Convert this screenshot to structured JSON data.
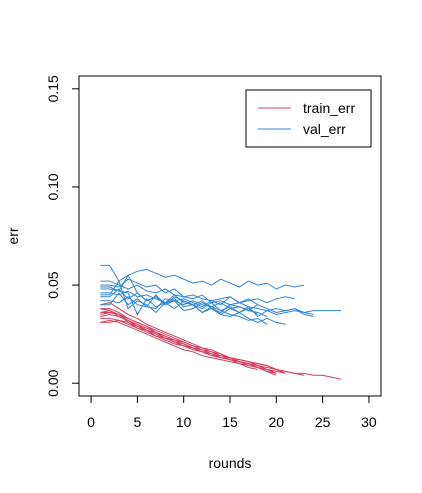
{
  "chart_data": {
    "type": "line",
    "title": "",
    "xlabel": "rounds",
    "ylabel": "err",
    "xlim": [
      0,
      30
    ],
    "ylim": [
      0,
      0.15
    ],
    "x_ticks": [
      0,
      5,
      10,
      15,
      20,
      25,
      30
    ],
    "y_ticks": [
      0.0,
      0.05,
      0.1,
      0.15
    ],
    "x_tick_labels": [
      "0",
      "5",
      "10",
      "15",
      "20",
      "25",
      "30"
    ],
    "y_tick_labels": [
      "0.00",
      "0.05",
      "0.10",
      "0.15"
    ],
    "grid": false,
    "legend_position": "top-right",
    "legend": [
      {
        "label": "train_err",
        "color": "#d4405e"
      },
      {
        "label": "val_err",
        "color": "#2e86d8"
      }
    ],
    "series": [
      {
        "group": "train_err",
        "color": "#d4405e",
        "y": [
          0.035,
          0.036,
          0.035,
          0.032,
          0.029,
          0.027,
          0.025,
          0.023,
          0.021,
          0.019,
          0.018,
          0.016,
          0.015,
          0.014,
          0.013,
          0.012,
          0.011,
          0.01,
          0.009,
          0.007,
          0.006,
          0.005,
          0.005,
          0.004,
          0.004,
          0.003,
          0.002
        ]
      },
      {
        "group": "train_err",
        "color": "#d4405e",
        "y": [
          0.038,
          0.038,
          0.036,
          0.033,
          0.031,
          0.029,
          0.027,
          0.025,
          0.023,
          0.021,
          0.019,
          0.018,
          0.016,
          0.015,
          0.013,
          0.012,
          0.011,
          0.01,
          0.009,
          0.007,
          0.006,
          0.005,
          0.004
        ]
      },
      {
        "group": "train_err",
        "color": "#d4405e",
        "y": [
          0.031,
          0.031,
          0.032,
          0.031,
          0.028,
          0.027,
          0.024,
          0.023,
          0.021,
          0.019,
          0.018,
          0.016,
          0.014,
          0.014,
          0.012,
          0.011,
          0.01,
          0.008,
          0.007,
          0.006
        ]
      },
      {
        "group": "train_err",
        "color": "#d4405e",
        "y": [
          0.036,
          0.037,
          0.034,
          0.032,
          0.03,
          0.027,
          0.026,
          0.023,
          0.022,
          0.02,
          0.018,
          0.017,
          0.015,
          0.013,
          0.012,
          0.011,
          0.01,
          0.009,
          0.007,
          0.005
        ]
      },
      {
        "group": "train_err",
        "color": "#d4405e",
        "y": [
          0.04,
          0.041,
          0.038,
          0.035,
          0.033,
          0.03,
          0.028,
          0.026,
          0.024,
          0.022,
          0.02,
          0.018,
          0.017,
          0.015,
          0.013,
          0.011,
          0.01,
          0.008,
          0.006
        ]
      },
      {
        "group": "train_err",
        "color": "#d4405e",
        "y": [
          0.033,
          0.033,
          0.032,
          0.03,
          0.028,
          0.026,
          0.024,
          0.022,
          0.02,
          0.019,
          0.017,
          0.016,
          0.014,
          0.013,
          0.012,
          0.011,
          0.009,
          0.008,
          0.006,
          0.004
        ]
      },
      {
        "group": "train_err",
        "color": "#d4405e",
        "y": [
          0.036,
          0.036,
          0.035,
          0.033,
          0.031,
          0.029,
          0.026,
          0.024,
          0.022,
          0.021,
          0.019,
          0.017,
          0.016,
          0.014,
          0.013,
          0.012,
          0.011,
          0.009,
          0.008,
          0.007,
          0.005
        ]
      },
      {
        "group": "train_err",
        "color": "#d4405e",
        "y": [
          0.031,
          0.032,
          0.031,
          0.029,
          0.027,
          0.025,
          0.023,
          0.021,
          0.019,
          0.017,
          0.016,
          0.014,
          0.013,
          0.012,
          0.011,
          0.01,
          0.008,
          0.007
        ]
      },
      {
        "group": "train_err",
        "color": "#d4405e",
        "y": [
          0.038,
          0.037,
          0.035,
          0.031,
          0.029,
          0.027,
          0.025,
          0.023,
          0.021,
          0.02,
          0.018,
          0.016,
          0.015,
          0.013,
          0.012,
          0.01,
          0.009,
          0.008,
          0.006,
          0.005
        ]
      },
      {
        "group": "train_err",
        "color": "#d4405e",
        "y": [
          0.034,
          0.035,
          0.034,
          0.032,
          0.03,
          0.028,
          0.026,
          0.024,
          0.022,
          0.02,
          0.018,
          0.017,
          0.015,
          0.014,
          0.013,
          0.011,
          0.01,
          0.009,
          0.007,
          0.006,
          0.005
        ]
      },
      {
        "group": "val_err",
        "color": "#2e86d8",
        "y": [
          0.06,
          0.06,
          0.052,
          0.055,
          0.057,
          0.058,
          0.056,
          0.054,
          0.055,
          0.053,
          0.051,
          0.052,
          0.05,
          0.053,
          0.051,
          0.049,
          0.052,
          0.05,
          0.051,
          0.048,
          0.05,
          0.049,
          0.05
        ]
      },
      {
        "group": "val_err",
        "color": "#2e86d8",
        "y": [
          0.052,
          0.052,
          0.05,
          0.048,
          0.05,
          0.047,
          0.046,
          0.048,
          0.045,
          0.044,
          0.043,
          0.045,
          0.041,
          0.042,
          0.04,
          0.041,
          0.039,
          0.038,
          0.037,
          0.038,
          0.037,
          0.038,
          0.036,
          0.035
        ]
      },
      {
        "group": "val_err",
        "color": "#2e86d8",
        "y": [
          0.044,
          0.044,
          0.048,
          0.043,
          0.046,
          0.042,
          0.044,
          0.04,
          0.042,
          0.043,
          0.041,
          0.039,
          0.042,
          0.04,
          0.044,
          0.041,
          0.043,
          0.04
        ]
      },
      {
        "group": "val_err",
        "color": "#2e86d8",
        "y": [
          0.05,
          0.05,
          0.049,
          0.053,
          0.051,
          0.049,
          0.05,
          0.046,
          0.048,
          0.044,
          0.045,
          0.043,
          0.042,
          0.043,
          0.044,
          0.041,
          0.042,
          0.043,
          0.041,
          0.043,
          0.044,
          0.043
        ]
      },
      {
        "group": "val_err",
        "color": "#2e86d8",
        "y": [
          0.048,
          0.048,
          0.047,
          0.046,
          0.035,
          0.043,
          0.039,
          0.041,
          0.038,
          0.042,
          0.04,
          0.036,
          0.039,
          0.035,
          0.038,
          0.036,
          0.039,
          0.034,
          0.037,
          0.035,
          0.036,
          0.037,
          0.036,
          0.037,
          0.037,
          0.037,
          0.037
        ]
      },
      {
        "group": "val_err",
        "color": "#2e86d8",
        "y": [
          0.04,
          0.04,
          0.046,
          0.04,
          0.043,
          0.039,
          0.045,
          0.04,
          0.044,
          0.042,
          0.04,
          0.038,
          0.041,
          0.037,
          0.039,
          0.036,
          0.038,
          0.035
        ]
      },
      {
        "group": "val_err",
        "color": "#2e86d8",
        "y": [
          0.045,
          0.045,
          0.052,
          0.038,
          0.042,
          0.04,
          0.036,
          0.041,
          0.043,
          0.039,
          0.04,
          0.036,
          0.038,
          0.035,
          0.034,
          0.036,
          0.033,
          0.031,
          0.033,
          0.031,
          0.03
        ]
      },
      {
        "group": "val_err",
        "color": "#2e86d8",
        "y": [
          0.042,
          0.042,
          0.041,
          0.044,
          0.04,
          0.039,
          0.038,
          0.043,
          0.042,
          0.037,
          0.038,
          0.041,
          0.039,
          0.037,
          0.035,
          0.034,
          0.032,
          0.033,
          0.03
        ]
      },
      {
        "group": "val_err",
        "color": "#2e86d8",
        "y": [
          0.049,
          0.049,
          0.047,
          0.055,
          0.046,
          0.042,
          0.044,
          0.041,
          0.045,
          0.041,
          0.04,
          0.042,
          0.038,
          0.036,
          0.04,
          0.039,
          0.037,
          0.04,
          0.038,
          0.036,
          0.037,
          0.038,
          0.035,
          0.034
        ]
      },
      {
        "group": "val_err",
        "color": "#2e86d8",
        "y": [
          0.046,
          0.046,
          0.045,
          0.047,
          0.044,
          0.045,
          0.043,
          0.041,
          0.042,
          0.04,
          0.042,
          0.04,
          0.039,
          0.041,
          0.038,
          0.039,
          0.037,
          0.036,
          0.034
        ]
      }
    ]
  }
}
